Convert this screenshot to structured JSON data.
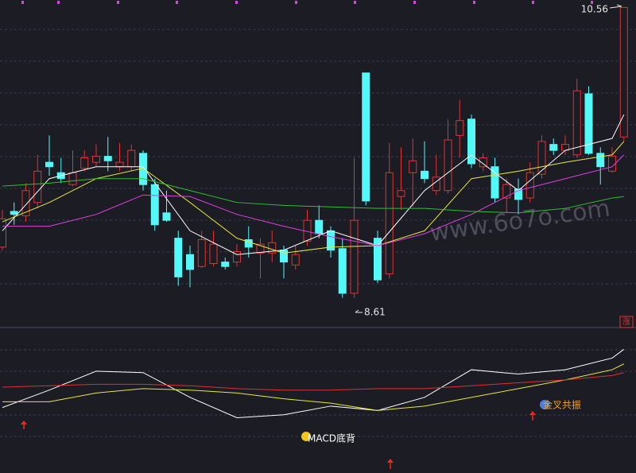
{
  "chart_data": [
    {
      "type": "candlestick",
      "open": [
        8.95,
        9.19,
        9.16,
        9.25,
        9.52,
        9.45,
        9.37,
        9.48,
        9.52,
        9.56,
        9.49,
        9.49,
        9.58,
        9.37,
        9.18,
        9.01,
        8.9,
        8.82,
        8.84,
        8.85,
        8.85,
        9.0,
        8.91,
        8.91,
        8.93,
        8.83,
        8.99,
        9.13,
        9.06,
        8.94,
        8.64,
        10.12,
        9.01,
        8.77,
        9.29,
        9.45,
        9.46,
        9.33,
        9.33,
        9.7,
        9.81,
        9.49,
        9.49,
        9.28,
        9.34,
        9.28,
        9.44,
        9.64,
        9.6,
        9.57,
        9.98,
        9.58,
        9.46,
        9.69
      ],
      "high": [
        9.2,
        9.25,
        9.38,
        9.57,
        9.7,
        9.55,
        9.6,
        9.6,
        9.64,
        9.69,
        9.65,
        9.64,
        9.6,
        9.41,
        9.33,
        9.06,
        8.96,
        9.06,
        9.06,
        8.88,
        8.97,
        9.09,
        9.01,
        9.06,
        8.96,
        8.96,
        9.2,
        9.23,
        9.09,
        9.01,
        9.55,
        10.12,
        9.06,
        9.65,
        9.62,
        9.68,
        9.66,
        9.57,
        9.81,
        9.94,
        9.84,
        9.58,
        9.55,
        9.41,
        9.41,
        9.52,
        9.7,
        9.68,
        9.7,
        10.08,
        10.03,
        9.62,
        9.62,
        10.56
      ],
      "low": [
        8.93,
        9.1,
        9.12,
        9.21,
        9.43,
        9.38,
        9.36,
        9.46,
        9.49,
        9.46,
        9.46,
        9.46,
        9.33,
        9.06,
        9.12,
        8.69,
        8.68,
        8.81,
        8.82,
        8.8,
        8.82,
        8.88,
        8.74,
        8.85,
        8.74,
        8.8,
        8.96,
        9.01,
        8.88,
        8.61,
        8.61,
        9.23,
        8.71,
        8.74,
        9.2,
        9.22,
        9.38,
        9.3,
        9.31,
        9.55,
        9.48,
        9.46,
        9.25,
        9.18,
        9.17,
        9.25,
        9.41,
        9.57,
        9.57,
        9.55,
        9.57,
        9.37,
        9.45,
        9.66
      ],
      "close": [
        9.14,
        9.17,
        9.33,
        9.46,
        9.49,
        9.41,
        9.45,
        9.55,
        9.56,
        9.53,
        9.52,
        9.6,
        9.37,
        9.1,
        9.13,
        8.75,
        8.8,
        9.0,
        8.97,
        8.82,
        8.92,
        8.95,
        8.97,
        8.98,
        8.85,
        8.9,
        9.13,
        9.04,
        8.93,
        8.64,
        9.13,
        9.26,
        8.73,
        9.45,
        9.33,
        9.53,
        9.41,
        9.42,
        9.67,
        9.8,
        9.51,
        9.55,
        9.28,
        9.37,
        9.27,
        9.45,
        9.66,
        9.6,
        9.64,
        10.0,
        9.58,
        9.49,
        9.56,
        10.56
      ],
      "up_color": "#e03434",
      "down_color": "#54f8f8",
      "xlim": [
        0,
        53
      ],
      "ylim": [
        8.41,
        10.61
      ],
      "series": [
        {
          "color": "#ffffff",
          "x": [
            0,
            4,
            8,
            12,
            16,
            20,
            24,
            28,
            32,
            36,
            40,
            44,
            48,
            52,
            53
          ],
          "values": [
            9.06,
            9.41,
            9.49,
            9.49,
            9.06,
            8.9,
            8.93,
            9.06,
            8.96,
            9.33,
            9.57,
            9.33,
            9.6,
            9.68,
            9.84
          ]
        },
        {
          "color": "#e8e83a",
          "x": [
            0,
            4,
            8,
            12,
            16,
            20,
            24,
            28,
            32,
            36,
            40,
            44,
            48,
            52,
            53
          ],
          "values": [
            9.12,
            9.25,
            9.41,
            9.48,
            9.25,
            9.01,
            8.91,
            8.95,
            8.96,
            9.06,
            9.41,
            9.46,
            9.52,
            9.57,
            9.66
          ]
        },
        {
          "color": "#e040e0",
          "x": [
            0,
            4,
            8,
            12,
            16,
            20,
            24,
            28,
            32,
            36,
            40,
            44,
            48,
            52,
            53
          ],
          "values": [
            9.09,
            9.09,
            9.17,
            9.3,
            9.29,
            9.17,
            9.09,
            9.02,
            8.96,
            9.04,
            9.17,
            9.33,
            9.41,
            9.49,
            9.57
          ]
        },
        {
          "color": "#30c030",
          "x": [
            0,
            4,
            8,
            12,
            16,
            20,
            24,
            28,
            32,
            36,
            40,
            44,
            48,
            52,
            53
          ],
          "values": [
            9.36,
            9.38,
            9.41,
            9.41,
            9.33,
            9.25,
            9.23,
            9.22,
            9.21,
            9.21,
            9.19,
            9.18,
            9.21,
            9.28,
            9.29
          ]
        }
      ],
      "badge": "涨",
      "watermark": "www.6o7o.com"
    },
    {
      "type": "line",
      "xlim": [
        0,
        53
      ],
      "ylim": [
        0,
        100
      ],
      "series": [
        {
          "color": "#ffffff",
          "x": [
            0,
            4,
            8,
            12,
            16,
            20,
            24,
            28,
            32,
            36,
            40,
            44,
            48,
            52,
            53
          ],
          "values": [
            45,
            57,
            70,
            69,
            52,
            38,
            40,
            46,
            43,
            52,
            71,
            68,
            71,
            79,
            85
          ]
        },
        {
          "color": "#e8e83a",
          "x": [
            0,
            4,
            8,
            12,
            16,
            20,
            24,
            28,
            32,
            36,
            40,
            44,
            48,
            52,
            53
          ],
          "values": [
            49,
            49,
            55,
            58,
            57,
            55,
            51,
            48,
            43,
            46,
            52,
            58,
            64,
            71,
            75
          ]
        },
        {
          "color": "#e03030",
          "x": [
            0,
            4,
            8,
            12,
            16,
            20,
            24,
            28,
            32,
            36,
            40,
            44,
            48,
            52,
            53
          ],
          "values": [
            59,
            60,
            61,
            61,
            60,
            58,
            57,
            57,
            58,
            58,
            60,
            62,
            64,
            67,
            69
          ]
        }
      ],
      "annotations": [
        "MACD底背",
        "金叉共振"
      ]
    }
  ]
}
